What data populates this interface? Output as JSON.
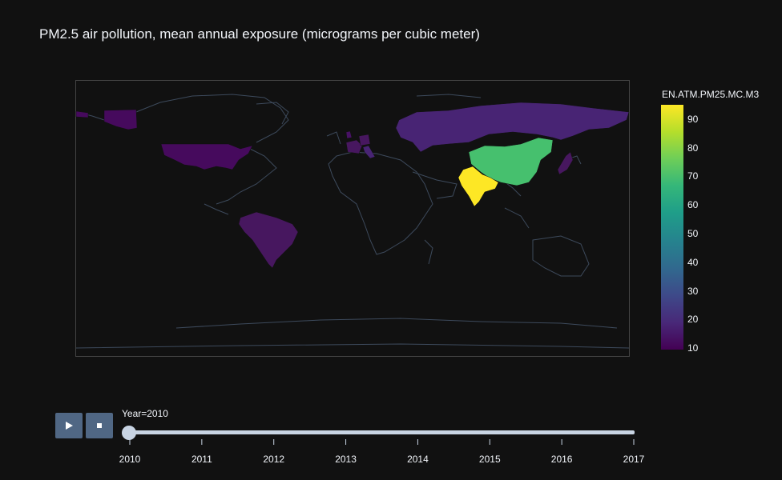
{
  "title": "PM2.5 air pollution, mean annual exposure (micrograms per cubic meter)",
  "chart_data": {
    "type": "choropleth",
    "title": "PM2.5 air pollution, mean annual exposure (micrograms per cubic meter)",
    "colorbar": {
      "title": "EN.ATM.PM25.MC.M3",
      "range": [
        9.5,
        95
      ],
      "ticks": [
        "10",
        "20",
        "30",
        "40",
        "50",
        "60",
        "70",
        "80",
        "90"
      ],
      "colorscale": "Viridis"
    },
    "frame": "Year=2010",
    "countries": [
      {
        "name": "United States",
        "value": 10
      },
      {
        "name": "Brazil",
        "value": 15
      },
      {
        "name": "France",
        "value": 15
      },
      {
        "name": "Germany",
        "value": 15
      },
      {
        "name": "Italy",
        "value": 18
      },
      {
        "name": "United Kingdom",
        "value": 11
      },
      {
        "name": "Russia",
        "value": 18
      },
      {
        "name": "Japan",
        "value": 16
      },
      {
        "name": "China",
        "value": 68
      },
      {
        "name": "India",
        "value": 95
      }
    ]
  },
  "slider": {
    "current_label": "Year=2010",
    "active_index": 0,
    "ticks": [
      "2010",
      "2011",
      "2012",
      "2013",
      "2014",
      "2015",
      "2016",
      "2017"
    ]
  },
  "controls": {
    "play": "play-icon",
    "stop": "stop-icon"
  },
  "colors": {
    "background": "#111111",
    "button": "#506784",
    "slider": "#c8d4e3",
    "coastline": "#506784"
  }
}
